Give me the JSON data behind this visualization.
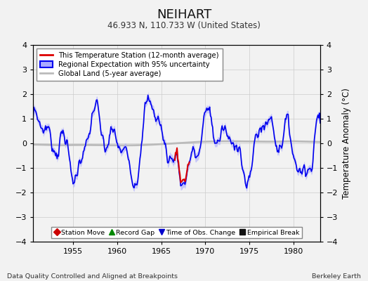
{
  "title": "NEIHART",
  "subtitle": "46.933 N, 110.733 W (United States)",
  "ylabel": "Temperature Anomaly (°C)",
  "xlabel_left": "Data Quality Controlled and Aligned at Breakpoints",
  "xlabel_right": "Berkeley Earth",
  "ylim": [
    -4,
    4
  ],
  "xlim": [
    1950.5,
    1983
  ],
  "yticks": [
    -4,
    -3,
    -2,
    -1,
    0,
    1,
    2,
    3,
    4
  ],
  "xticks": [
    1955,
    1960,
    1965,
    1970,
    1975,
    1980
  ],
  "regional_color": "#0000ee",
  "regional_fill_color": "#aaaaff",
  "station_color": "#dd0000",
  "global_color": "#bbbbbb",
  "background_color": "#f2f2f2",
  "legend_items": [
    {
      "label": "This Temperature Station (12-month average)",
      "color": "#dd0000"
    },
    {
      "label": "Regional Expectation with 95% uncertainty",
      "color": "#0000ee"
    },
    {
      "label": "Global Land (5-year average)",
      "color": "#bbbbbb"
    }
  ],
  "marker_items": [
    {
      "label": "Station Move",
      "color": "#cc0000",
      "marker": "D"
    },
    {
      "label": "Record Gap",
      "color": "#008800",
      "marker": "^"
    },
    {
      "label": "Time of Obs. Change",
      "color": "#0000cc",
      "marker": "v"
    },
    {
      "label": "Empirical Break",
      "color": "#111111",
      "marker": "s"
    }
  ]
}
